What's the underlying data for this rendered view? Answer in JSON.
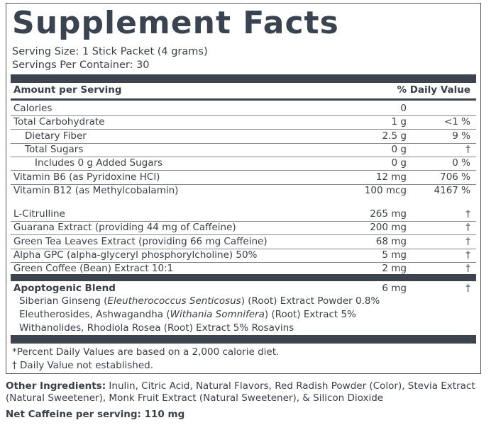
{
  "title": "Supplement Facts",
  "serving_size": "Serving Size: 1 Stick Packet (4 grams)",
  "servings_per_container": "Servings Per Container: 30",
  "header": {
    "amount": "Amount per Serving",
    "daily_value": "% Daily Value"
  },
  "sections": [
    {
      "rows": [
        {
          "name": "Calories",
          "amount": "0"
        },
        {
          "name": "Total Carbohydrate",
          "amount": "1 g",
          "dv": "<1 %"
        },
        {
          "name": "Dietary Fiber",
          "amount": "2.5 g",
          "dv": "9 %"
        },
        {
          "name": "Total Sugars",
          "amount": "0 g",
          "dv": "†"
        },
        {
          "name": "Includes 0 g Added Sugars",
          "amount": "0 g",
          "dv": "0 %"
        },
        {
          "name": "Vitamin B6 (as Pyridoxine HCl)",
          "amount": "12 mg",
          "dv": "706 %"
        },
        {
          "name": "Vitamin B12 (as Methylcobalamin)",
          "amount": "100 mcg",
          "dv": "4167 %"
        }
      ]
    },
    {
      "rows": [
        {
          "name": "L-Citrulline",
          "amount": "265 mg",
          "dv": "†"
        },
        {
          "name": "Guarana Extract (providing 44 mg of Caffeine)",
          "amount": "200 mg",
          "dv": "†"
        },
        {
          "name": "Green Tea Leaves Extract (providing 66 mg Caffeine)",
          "amount": "68 mg",
          "dv": "†"
        },
        {
          "name": "Alpha GPC (alpha-glyceryl phosphorylcholine) 50%",
          "amount": "5 mg",
          "dv": "†"
        },
        {
          "name": "Green Coffee (Bean) Extract 10:1",
          "amount": "2 mg",
          "dv": "†"
        }
      ]
    }
  ],
  "blend": {
    "name": "Apoptogenic Blend",
    "amount": "6 mg",
    "dv": "†",
    "lines": [
      [
        "Siberian Ginseng (",
        "Eleutherococcus Senticosus",
        ") (Root) Extract Powder 0.8%"
      ],
      [
        "Eleutherosides, Ashwagandha (",
        "Withania Somnifera",
        ") (Root) Extract 5%"
      ],
      [
        "Withanolides, Rhodiola Rosea (Root) Extract 5% Rosavins"
      ]
    ]
  },
  "footnotes": [
    "*Percent Daily Values are based on a 2,000 calorie diet.",
    "† Daily Value not established."
  ],
  "other_ingredients": {
    "label": "Other Ingredients:",
    "text": "Inulin, Citric Acid, Natural Flavors, Red Radish Powder (Color), Stevia Extract (Natural Sweetener), Monk Fruit Extract (Natural Sweetener), & Silicon Dioxide"
  },
  "net_caffeine": "Net Caffeine per serving: 110 mg"
}
